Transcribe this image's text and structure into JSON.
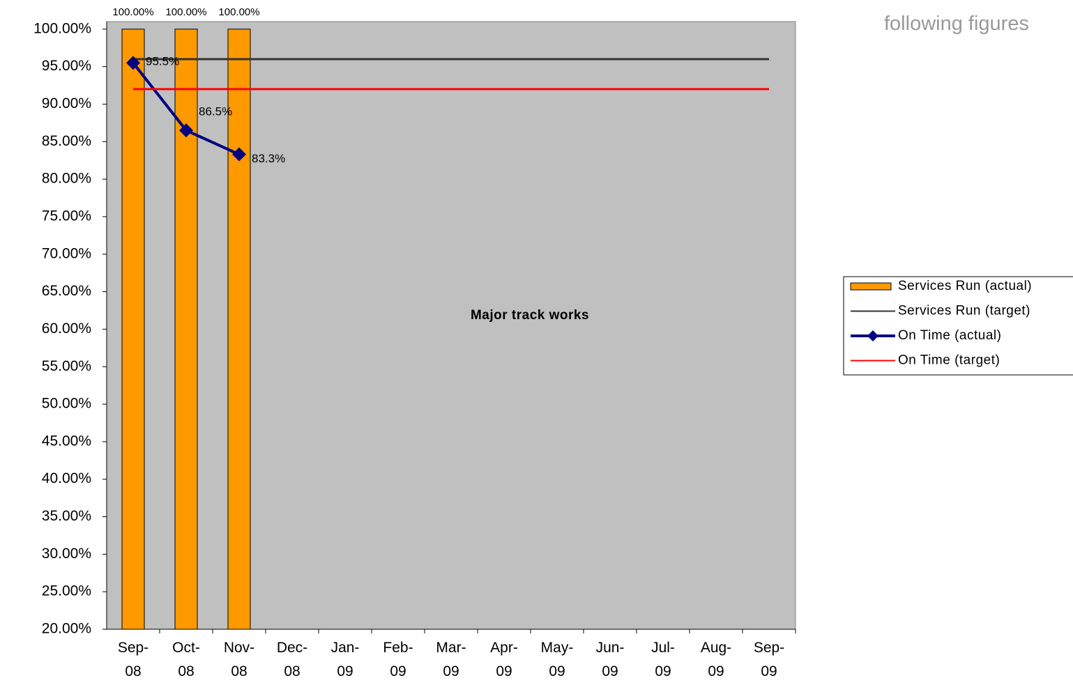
{
  "chart_data": {
    "type": "bar",
    "categories": [
      "Sep-08",
      "Oct-08",
      "Nov-08",
      "Dec-08",
      "Jan-09",
      "Feb-09",
      "Mar-09",
      "Apr-09",
      "May-09",
      "Jun-09",
      "Jul-09",
      "Aug-09",
      "Sep-09"
    ],
    "series": [
      {
        "name": "Services Run (actual)",
        "type": "bar",
        "color": "#ff9900",
        "values": [
          100,
          100,
          100,
          null,
          null,
          null,
          null,
          null,
          null,
          null,
          null,
          null,
          null
        ],
        "value_labels": [
          "100.00%",
          "100.00%",
          "100.00%",
          null,
          null,
          null,
          null,
          null,
          null,
          null,
          null,
          null,
          null
        ]
      },
      {
        "name": "Services Run (target)",
        "type": "line",
        "color": "#333333",
        "values": [
          96,
          96,
          96,
          96,
          96,
          96,
          96,
          96,
          96,
          96,
          96,
          96,
          96
        ]
      },
      {
        "name": "On Time (actual)",
        "type": "line",
        "marker": "diamond",
        "color": "#000080",
        "values": [
          95.5,
          86.5,
          83.3,
          null,
          null,
          null,
          null,
          null,
          null,
          null,
          null,
          null,
          null
        ],
        "value_labels": [
          "95.5%",
          "86.5%",
          "83.3%",
          null,
          null,
          null,
          null,
          null,
          null,
          null,
          null,
          null,
          null
        ]
      },
      {
        "name": "On Time (target)",
        "type": "line",
        "color": "#ff0000",
        "values": [
          92,
          92,
          92,
          92,
          92,
          92,
          92,
          92,
          92,
          92,
          92,
          92,
          92
        ]
      }
    ],
    "annotation": "Major track works",
    "side_text": "following figures",
    "ylim": [
      20,
      101
    ],
    "yticks": [
      {
        "value": 20,
        "label": "20.00%"
      },
      {
        "value": 25,
        "label": "25.00%"
      },
      {
        "value": 30,
        "label": "30.00%"
      },
      {
        "value": 35,
        "label": "35.00%"
      },
      {
        "value": 40,
        "label": "40.00%"
      },
      {
        "value": 45,
        "label": "45.00%"
      },
      {
        "value": 50,
        "label": "50.00%"
      },
      {
        "value": 55,
        "label": "55.00%"
      },
      {
        "value": 60,
        "label": "60.00%"
      },
      {
        "value": 65,
        "label": "65.00%"
      },
      {
        "value": 70,
        "label": "70.00%"
      },
      {
        "value": 75,
        "label": "75.00%"
      },
      {
        "value": 80,
        "label": "80.00%"
      },
      {
        "value": 85,
        "label": "85.00%"
      },
      {
        "value": 90,
        "label": "90.00%"
      },
      {
        "value": 95,
        "label": "95.00%"
      },
      {
        "value": 100,
        "label": "100.00%"
      }
    ],
    "plot_background": "#c0c0c0",
    "legend": "right"
  }
}
